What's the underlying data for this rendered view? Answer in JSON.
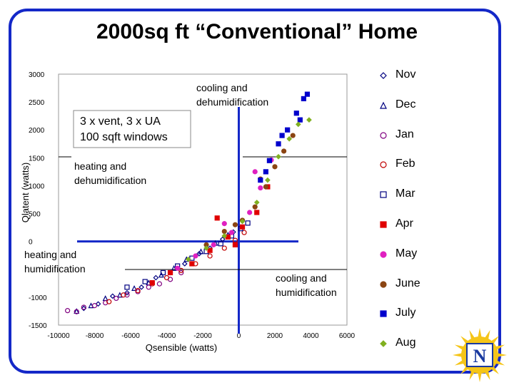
{
  "slide": {
    "title": "2000sq ft “Conventional” Home",
    "inset_text": [
      "3 x vent, 3 x UA",
      "100 sqft windows"
    ],
    "colors": {
      "frame": "#1428c8",
      "quadrant_lines": "#1428c8",
      "logo_sun": "#f5c518",
      "logo_text": "#1a3aa0"
    },
    "logo_icon": "sun-logo-icon",
    "logo_letters": "N"
  },
  "chart_data": {
    "type": "scatter",
    "title": "",
    "xlabel": "Qsensible (watts)",
    "ylabel": "Qlatent (watts)",
    "xlim": [
      -10000,
      6000
    ],
    "ylim": [
      -1500,
      3000
    ],
    "xticks": [
      -10000,
      -8000,
      -6000,
      -4000,
      -2000,
      0,
      2000,
      4000,
      6000
    ],
    "yticks": [
      3000,
      2500,
      2000,
      1500,
      1000,
      500,
      0,
      -1000,
      -1500
    ],
    "grid": false,
    "legend_position": "right",
    "quadrant_labels": [
      {
        "text": [
          "cooling and",
          "dehumidification"
        ]
      },
      {
        "text": [
          "heating and",
          "dehumidification"
        ]
      },
      {
        "text": [
          "heating and",
          "humidification"
        ]
      },
      {
        "text": [
          "cooling and",
          "humidification"
        ]
      }
    ],
    "series": [
      {
        "name": "Nov",
        "marker": "diamond-open",
        "color": "#000080",
        "x": [
          -8600,
          -7800,
          -7000,
          -6200,
          -5400,
          -4600,
          -3800,
          -3000,
          -2200,
          -1600,
          -900,
          -300
        ],
        "y": [
          -1200,
          -1120,
          -980,
          -920,
          -820,
          -650,
          -560,
          -400,
          -220,
          -120,
          40,
          170
        ]
      },
      {
        "name": "Dec",
        "marker": "triangle-open",
        "color": "#000080",
        "x": [
          -9000,
          -8200,
          -7400,
          -6600,
          -5800,
          -5000,
          -4300,
          -3600,
          -2900,
          -2100,
          -1300,
          -600
        ],
        "y": [
          -1250,
          -1150,
          -1020,
          -960,
          -840,
          -740,
          -600,
          -480,
          -320,
          -180,
          -30,
          120
        ]
      },
      {
        "name": "Jan",
        "marker": "circle-open",
        "color": "#800080",
        "x": [
          -9500,
          -9000,
          -8600,
          -8000,
          -7400,
          -6800,
          -6200,
          -5600,
          -5000,
          -4400,
          -3800,
          -3200
        ],
        "y": [
          -1240,
          -1260,
          -1180,
          -1150,
          -1100,
          -1020,
          -960,
          -900,
          -820,
          -760,
          -680,
          -560
        ]
      },
      {
        "name": "Feb",
        "marker": "circle-open",
        "color": "#c00000",
        "x": [
          -7200,
          -6400,
          -5600,
          -4800,
          -4000,
          -3200,
          -2400,
          -1600,
          -800,
          -200,
          300
        ],
        "y": [
          -1080,
          -960,
          -880,
          -760,
          -650,
          -520,
          -400,
          -260,
          -120,
          20,
          160
        ]
      },
      {
        "name": "Mar",
        "marker": "square-open",
        "color": "#000080",
        "x": [
          -6200,
          -5200,
          -4200,
          -3400,
          -2600,
          -1800,
          -1000,
          -400,
          100,
          500
        ],
        "y": [
          -820,
          -720,
          -560,
          -440,
          -300,
          -180,
          -40,
          100,
          230,
          330
        ]
      },
      {
        "name": "Apr",
        "marker": "square",
        "color": "#e00000",
        "x": [
          -4800,
          -3800,
          -2600,
          -1600,
          -600,
          200,
          1000,
          1600,
          -1200,
          -200
        ],
        "y": [
          -740,
          -560,
          -400,
          -160,
          80,
          260,
          520,
          980,
          420,
          -60
        ]
      },
      {
        "name": "May",
        "marker": "circle",
        "color": "#e020c0",
        "x": [
          -3400,
          -2400,
          -1400,
          -400,
          600,
          1200,
          1800,
          2400,
          -800,
          900
        ],
        "y": [
          -480,
          -260,
          -60,
          160,
          520,
          960,
          1460,
          1900,
          320,
          1250
        ]
      },
      {
        "name": "June",
        "marker": "circle",
        "color": "#8b4513",
        "x": [
          -1800,
          -800,
          200,
          900,
          1500,
          2000,
          2500,
          3000,
          -200,
          1200
        ],
        "y": [
          -60,
          180,
          380,
          620,
          980,
          1340,
          1620,
          1900,
          300,
          1120
        ]
      },
      {
        "name": "July",
        "marker": "square",
        "color": "#0000cc",
        "x": [
          1200,
          1700,
          2200,
          2700,
          3200,
          3600,
          3800,
          1500,
          2400,
          3400
        ],
        "y": [
          1100,
          1450,
          1750,
          2000,
          2300,
          2560,
          2640,
          1250,
          1900,
          2180
        ]
      },
      {
        "name": "Aug",
        "marker": "diamond",
        "color": "#80b020",
        "x": [
          -2800,
          -1800,
          -800,
          200,
          1000,
          1600,
          2200,
          2800,
          3300,
          3900
        ],
        "y": [
          -320,
          -120,
          100,
          360,
          700,
          1100,
          1520,
          1840,
          2100,
          2180
        ]
      }
    ]
  }
}
